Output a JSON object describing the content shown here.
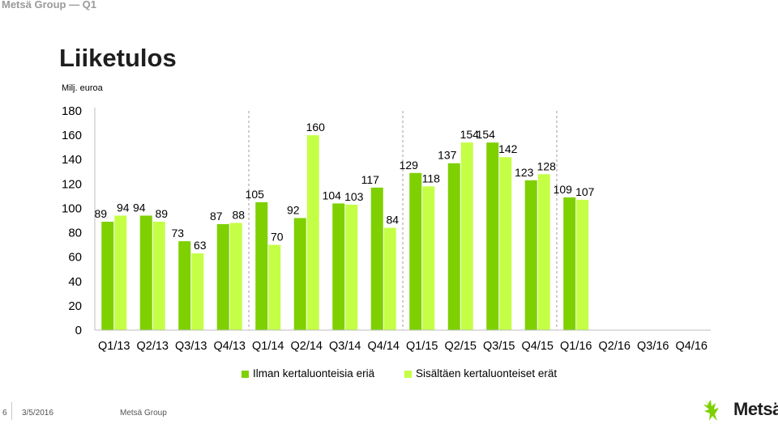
{
  "header": {
    "title": "Metsä Group — Q1"
  },
  "slide": {
    "title": "Liiketulos"
  },
  "chart_data": {
    "type": "bar",
    "unit_label": "Milj. euroa",
    "categories": [
      "Q1/13",
      "Q2/13",
      "Q3/13",
      "Q4/13",
      "Q1/14",
      "Q2/14",
      "Q3/14",
      "Q4/14",
      "Q1/15",
      "Q2/15",
      "Q3/15",
      "Q4/15",
      "Q1/16",
      "Q2/16",
      "Q3/16",
      "Q4/16"
    ],
    "series": [
      {
        "name": "Ilman kertaluonteisia eriä",
        "color": "#7ed000",
        "values": [
          89,
          94,
          73,
          87,
          105,
          92,
          104,
          117,
          129,
          137,
          154,
          123,
          109,
          null,
          null,
          null
        ]
      },
      {
        "name": "Sisältäen kertaluonteiset erät",
        "color": "#c4ff45",
        "values": [
          94,
          89,
          63,
          88,
          70,
          160,
          103,
          84,
          118,
          154,
          142,
          128,
          107,
          null,
          null,
          null
        ]
      }
    ],
    "ylim": [
      0,
      180
    ],
    "yticks": [
      0,
      20,
      40,
      60,
      80,
      100,
      120,
      140,
      160,
      180
    ],
    "year_separators_after": [
      "Q4/13",
      "Q4/14",
      "Q4/15"
    ],
    "grid": false,
    "legend": "bottom"
  },
  "footer": {
    "page": "6",
    "date": "3/5/2016",
    "company": "Metsä Group"
  },
  "logo": {
    "text": "Metsä"
  }
}
